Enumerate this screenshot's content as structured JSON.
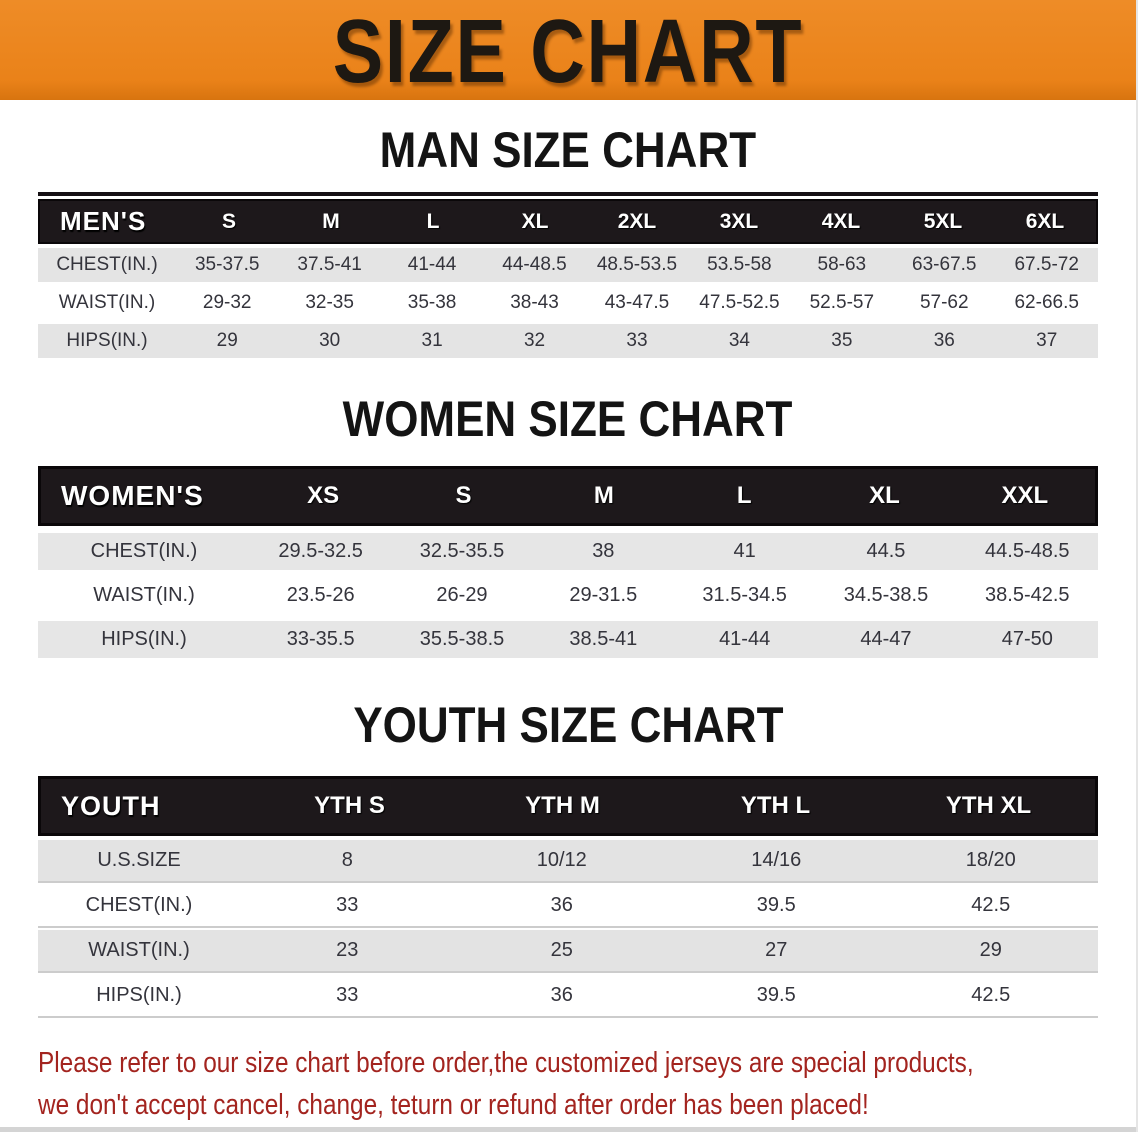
{
  "banner": {
    "title": "SIZE CHART",
    "bg_color": "#ea8219",
    "text_color": "#1d1812"
  },
  "chart_data": [
    {
      "type": "table",
      "title": "MAN SIZE CHART",
      "columns": [
        "MEN'S",
        "S",
        "M",
        "L",
        "XL",
        "2XL",
        "3XL",
        "4XL",
        "5XL",
        "6XL"
      ],
      "rows": [
        [
          "CHEST(IN.)",
          "35-37.5",
          "37.5-41",
          "41-44",
          "44-48.5",
          "48.5-53.5",
          "53.5-58",
          "58-63",
          "63-67.5",
          "67.5-72"
        ],
        [
          "WAIST(IN.)",
          "29-32",
          "32-35",
          "35-38",
          "38-43",
          "43-47.5",
          "47.5-52.5",
          "52.5-57",
          "57-62",
          "62-66.5"
        ],
        [
          "HIPS(IN.)",
          "29",
          "30",
          "31",
          "32",
          "33",
          "34",
          "35",
          "36",
          "37"
        ]
      ]
    },
    {
      "type": "table",
      "title": "WOMEN SIZE CHART",
      "columns": [
        "WOMEN'S",
        "XS",
        "S",
        "M",
        "L",
        "XL",
        "XXL"
      ],
      "rows": [
        [
          "CHEST(IN.)",
          "29.5-32.5",
          "32.5-35.5",
          "38",
          "41",
          "44.5",
          "44.5-48.5"
        ],
        [
          "WAIST(IN.)",
          "23.5-26",
          "26-29",
          "29-31.5",
          "31.5-34.5",
          "34.5-38.5",
          "38.5-42.5"
        ],
        [
          "HIPS(IN.)",
          "33-35.5",
          "35.5-38.5",
          "38.5-41",
          "41-44",
          "44-47",
          "47-50"
        ]
      ]
    },
    {
      "type": "table",
      "title": "YOUTH SIZE CHART",
      "columns": [
        "YOUTH",
        "YTH S",
        "YTH M",
        "YTH L",
        "YTH XL"
      ],
      "rows": [
        [
          "U.S.SIZE",
          "8",
          "10/12",
          "14/16",
          "18/20"
        ],
        [
          "CHEST(IN.)",
          "33",
          "36",
          "39.5",
          "42.5"
        ],
        [
          "WAIST(IN.)",
          "23",
          "25",
          "27",
          "29"
        ],
        [
          "HIPS(IN.)",
          "33",
          "36",
          "39.5",
          "42.5"
        ]
      ]
    }
  ],
  "disclaimer": {
    "line1": "Please refer to our size chart before order,the customized jerseys are special products,",
    "line2": "we don't accept cancel, change, teturn or refund after order has been placed!",
    "color": "#a3241f"
  }
}
